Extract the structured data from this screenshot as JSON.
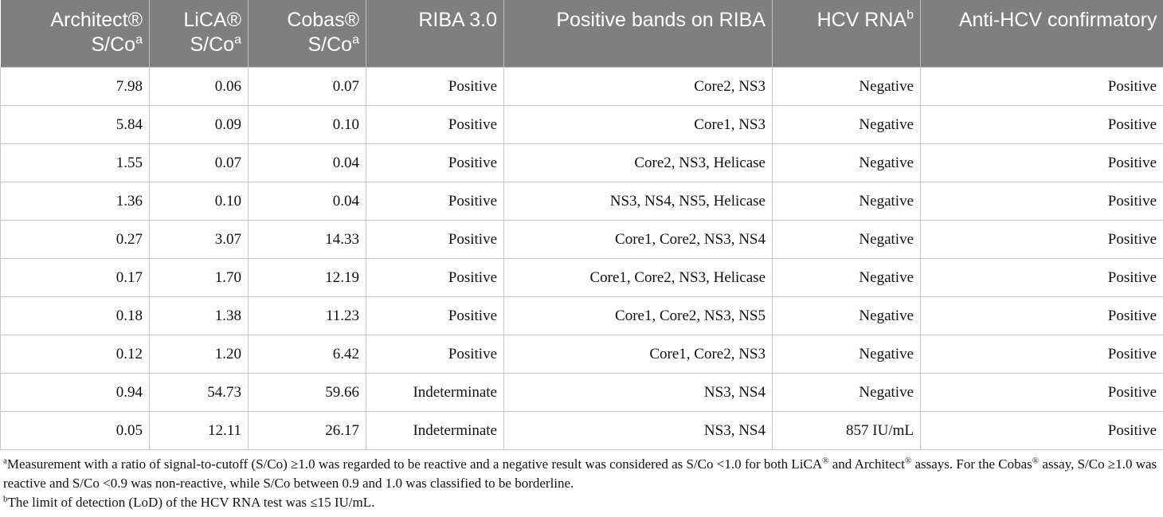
{
  "columns": [
    {
      "line1": "Architect®",
      "line2": "S/Co",
      "sup": "a"
    },
    {
      "line1": "LiCA®",
      "line2": "S/Co",
      "sup": "a"
    },
    {
      "line1": "Cobas®",
      "line2": "S/Co",
      "sup": "a"
    },
    {
      "line1": "RIBA 3.0",
      "line2": "",
      "sup": ""
    },
    {
      "line1": "Positive bands on RIBA",
      "line2": "",
      "sup": ""
    },
    {
      "line1": "HCV RNA",
      "line2": "",
      "sup": "b"
    },
    {
      "line1": "Anti-HCV confirmatory",
      "line2": "",
      "sup": ""
    }
  ],
  "rows": [
    [
      "7.98",
      "0.06",
      "0.07",
      "Positive",
      "Core2, NS3",
      "Negative",
      "Positive"
    ],
    [
      "5.84",
      "0.09",
      "0.10",
      "Positive",
      "Core1, NS3",
      "Negative",
      "Positive"
    ],
    [
      "1.55",
      "0.07",
      "0.04",
      "Positive",
      "Core2, NS3, Helicase",
      "Negative",
      "Positive"
    ],
    [
      "1.36",
      "0.10",
      "0.04",
      "Positive",
      "NS3, NS4, NS5, Helicase",
      "Negative",
      "Positive"
    ],
    [
      "0.27",
      "3.07",
      "14.33",
      "Positive",
      "Core1, Core2, NS3, NS4",
      "Negative",
      "Positive"
    ],
    [
      "0.17",
      "1.70",
      "12.19",
      "Positive",
      "Core1, Core2, NS3, Helicase",
      "Negative",
      "Positive"
    ],
    [
      "0.18",
      "1.38",
      "11.23",
      "Positive",
      "Core1, Core2, NS3, NS5",
      "Negative",
      "Positive"
    ],
    [
      "0.12",
      "1.20",
      "6.42",
      "Positive",
      "Core1, Core2, NS3",
      "Negative",
      "Positive"
    ],
    [
      "0.94",
      "54.73",
      "59.66",
      "Indeterminate",
      "NS3, NS4",
      "Negative",
      "Positive"
    ],
    [
      "0.05",
      "12.11",
      "26.17",
      "Indeterminate",
      "NS3, NS4",
      "857 IU/mL",
      "Positive"
    ]
  ],
  "footnotes": {
    "a": {
      "marker": "a",
      "part1": "Measurement with a ratio of signal-to-cutoff (S/Co) ≥1.0 was regarded to be reactive and a negative result was considered as S/Co <1.0 for both LiCA",
      "reg1": "®",
      "part2": " and Architect",
      "reg2": "®",
      "part3": " assays. For the Cobas",
      "reg3": "®",
      "part4": " assay, S/Co ≥1.0 was reactive and S/Co <0.9 was non-reactive, while S/Co between 0.9 and 1.0 was classified to be borderline."
    },
    "b": {
      "marker": "b",
      "text": "The limit of detection (LoD) of the HCV RNA test was ≤15 IU/mL."
    }
  }
}
